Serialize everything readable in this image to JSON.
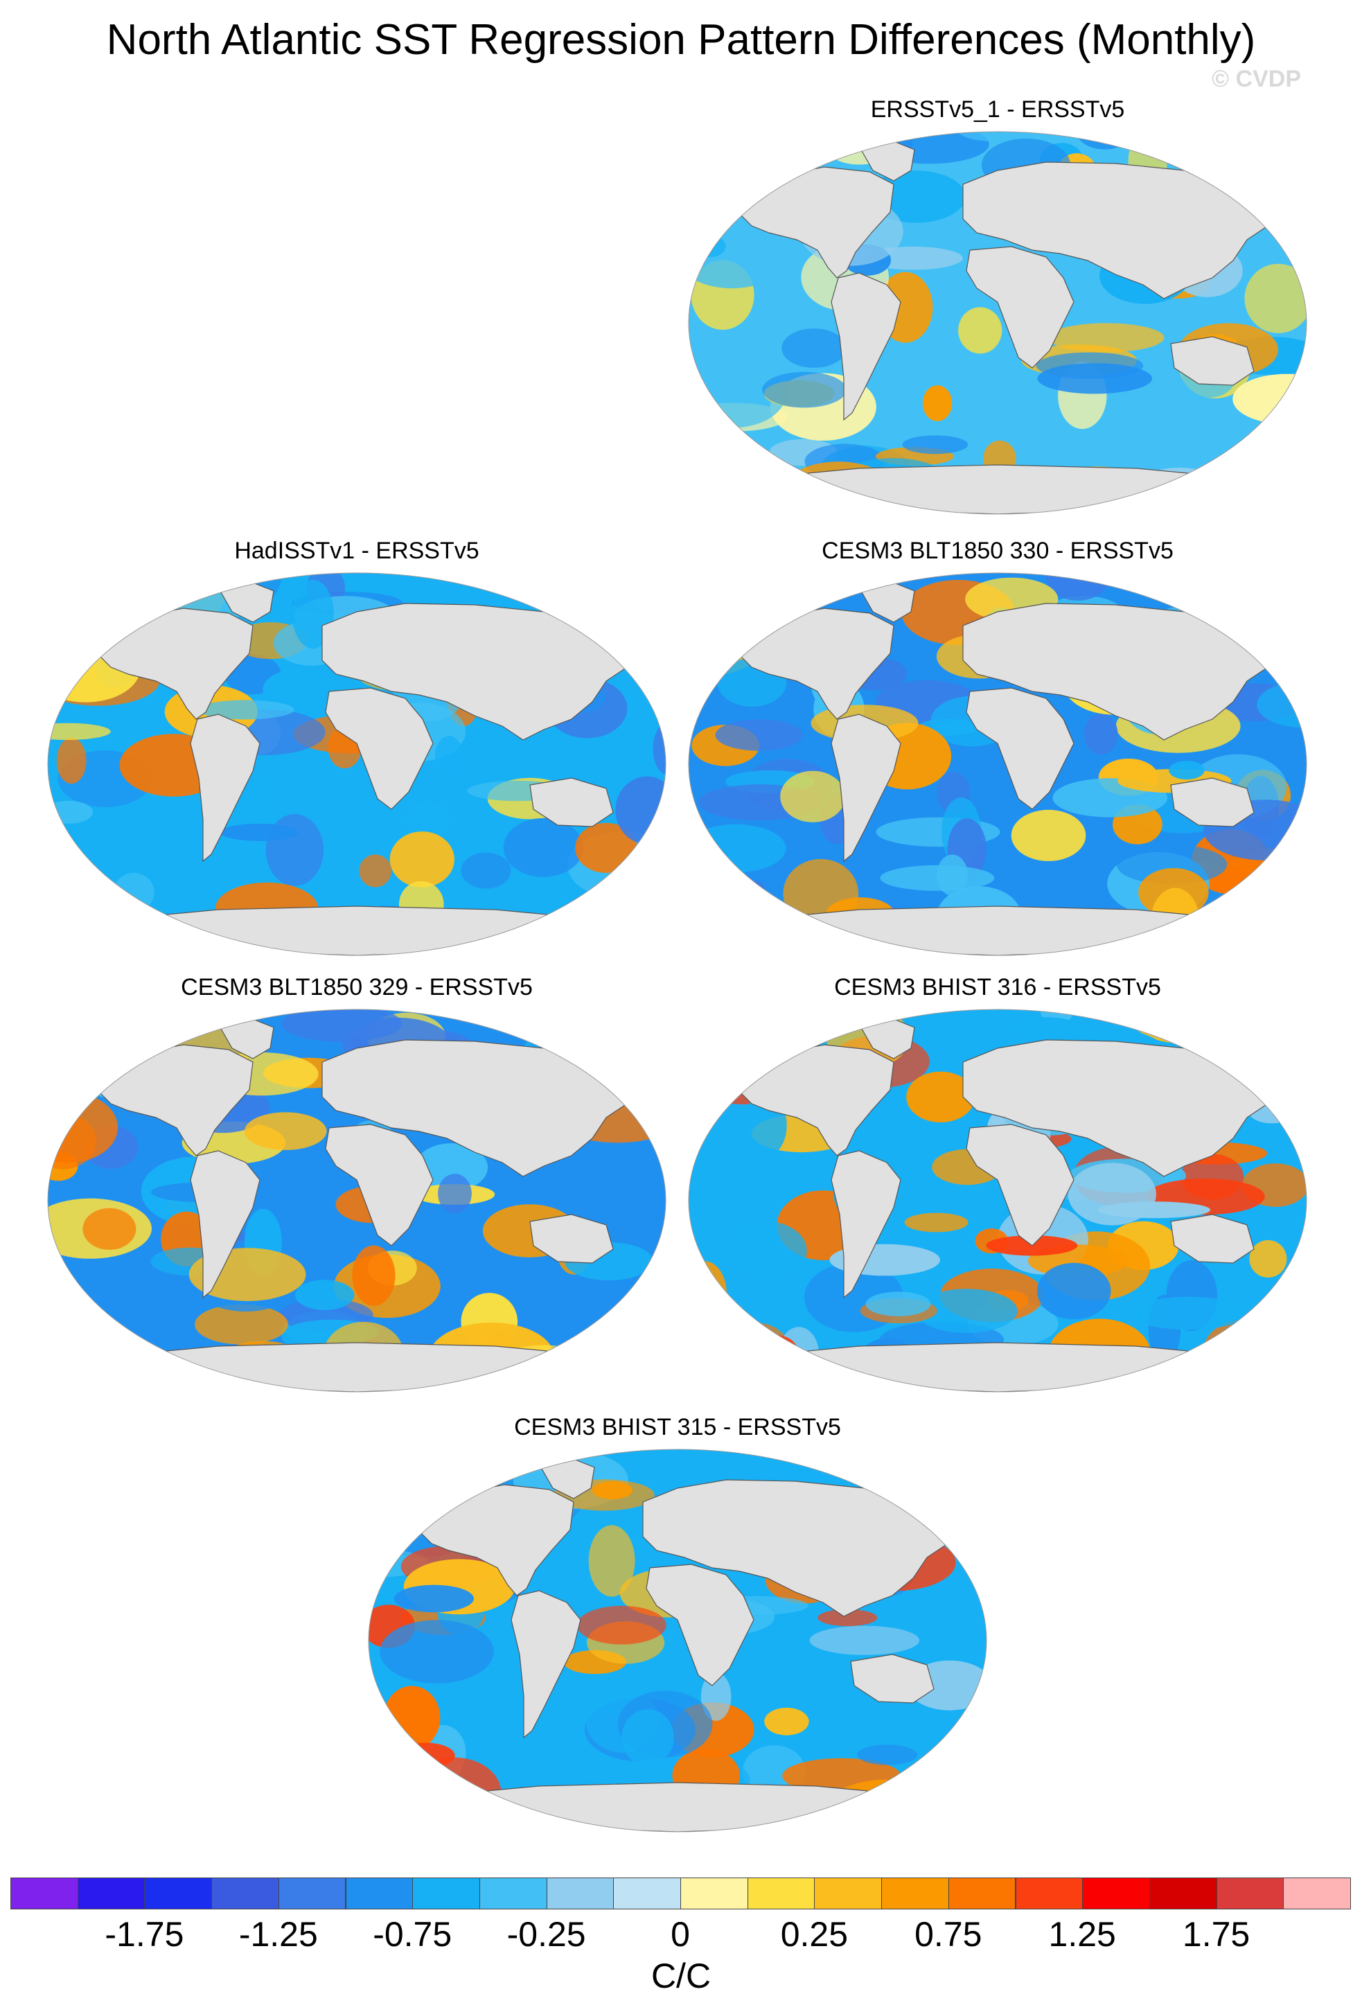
{
  "title": "North Atlantic SST Regression Pattern Differences (Monthly)",
  "copyright": "© CVDP",
  "panels": [
    {
      "label": "ERSSTv5_1 - ERSSTv5",
      "palette": "A"
    },
    {
      "label": "HadISSTv1 - ERSSTv5",
      "palette": "B"
    },
    {
      "label": "CESM3 BLT1850 330 - ERSSTv5",
      "palette": "C"
    },
    {
      "label": "CESM3 BLT1850 329 - ERSSTv5",
      "palette": "C"
    },
    {
      "label": "CESM3 BHIST 316 - ERSSTv5",
      "palette": "D"
    },
    {
      "label": "CESM3 BHIST 315 - ERSSTv5",
      "palette": "D"
    }
  ],
  "colorbar": {
    "units": "C/C",
    "colors": [
      "#7f22ee",
      "#2a1aee",
      "#1a2ef0",
      "#3a5adf",
      "#3a7de8",
      "#2090f0",
      "#17b0f5",
      "#42c0f5",
      "#90cdee",
      "#bfe2f4",
      "#fff5a5",
      "#fde03f",
      "#fbbd1e",
      "#fb9a00",
      "#fb7600",
      "#fb3f10",
      "#fa0000",
      "#d60000",
      "#da3c3c",
      "#feb3b5"
    ],
    "ticks": [
      "-1.75",
      "-1.25",
      "-0.75",
      "-0.25",
      "0",
      "0.25",
      "0.75",
      "1.25",
      "1.75"
    ]
  },
  "colors": {
    "land": "#e1e1e1",
    "coast": "#555555"
  }
}
